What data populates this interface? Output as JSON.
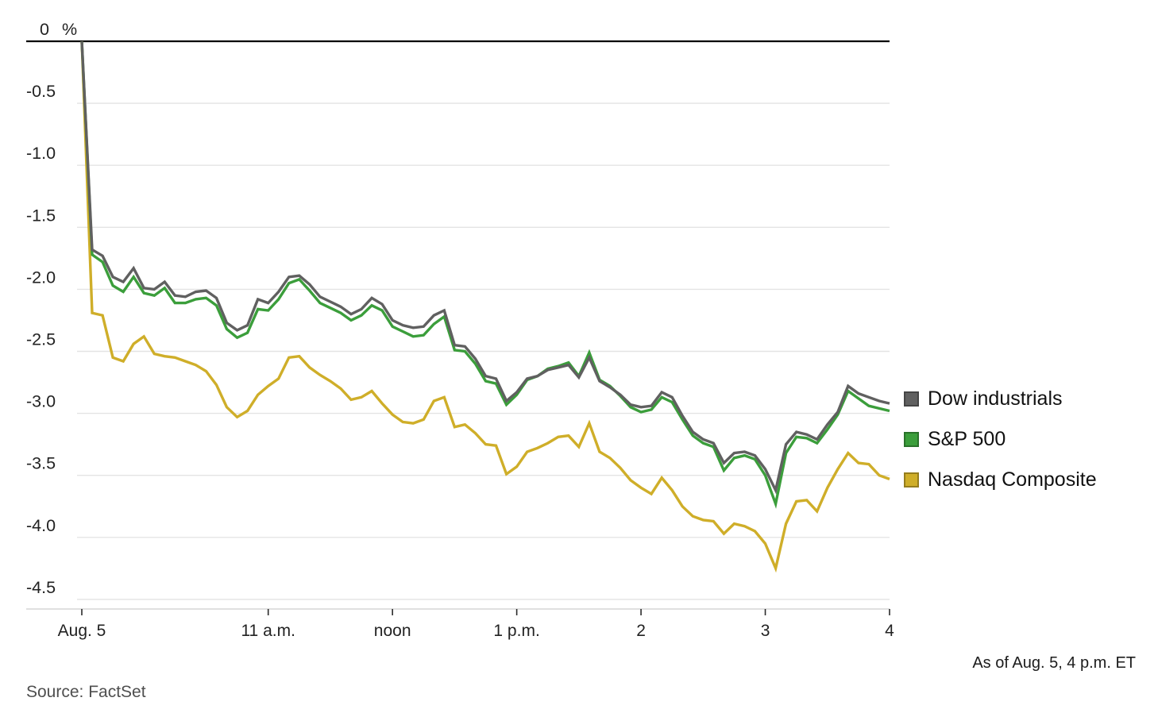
{
  "footer": {
    "source": "Source: FactSet",
    "as_of": "As of Aug. 5, 4 p.m. ET"
  },
  "chart_data": {
    "type": "line",
    "title": "",
    "xlabel": "",
    "ylabel": "%",
    "unit_label": "%",
    "ylim": [
      -4.5,
      0
    ],
    "grid": true,
    "legend_position": "right",
    "x_axis_ticks": [
      {
        "time": "9:30",
        "label": "Aug. 5"
      },
      {
        "time": "11:00",
        "label": "11 a.m."
      },
      {
        "time": "12:00",
        "label": "noon"
      },
      {
        "time": "13:00",
        "label": "1 p.m."
      },
      {
        "time": "14:00",
        "label": "2"
      },
      {
        "time": "15:00",
        "label": "3"
      },
      {
        "time": "16:00",
        "label": "4"
      }
    ],
    "y_axis_ticks": [
      {
        "value": 0,
        "label": "0"
      },
      {
        "value": -0.5,
        "label": "-0.5"
      },
      {
        "value": -1.0,
        "label": "-1.0"
      },
      {
        "value": -1.5,
        "label": "-1.5"
      },
      {
        "value": -2.0,
        "label": "-2.0"
      },
      {
        "value": -2.5,
        "label": "-2.5"
      },
      {
        "value": -3.0,
        "label": "-3.0"
      },
      {
        "value": -3.5,
        "label": "-3.5"
      },
      {
        "value": -4.0,
        "label": "-4.0"
      },
      {
        "value": -4.5,
        "label": "-4.5"
      }
    ],
    "x": [
      "9:30",
      "9:35",
      "9:40",
      "9:45",
      "9:50",
      "9:55",
      "10:00",
      "10:05",
      "10:10",
      "10:15",
      "10:20",
      "10:25",
      "10:30",
      "10:35",
      "10:40",
      "10:45",
      "10:50",
      "10:55",
      "11:00",
      "11:05",
      "11:10",
      "11:15",
      "11:20",
      "11:25",
      "11:30",
      "11:35",
      "11:40",
      "11:45",
      "11:50",
      "11:55",
      "12:00",
      "12:05",
      "12:10",
      "12:15",
      "12:20",
      "12:25",
      "12:30",
      "12:35",
      "12:40",
      "12:45",
      "12:50",
      "12:55",
      "13:00",
      "13:05",
      "13:10",
      "13:15",
      "13:20",
      "13:25",
      "13:30",
      "13:35",
      "13:40",
      "13:45",
      "13:50",
      "13:55",
      "14:00",
      "14:05",
      "14:10",
      "14:15",
      "14:20",
      "14:25",
      "14:30",
      "14:35",
      "14:40",
      "14:45",
      "14:50",
      "14:55",
      "15:00",
      "15:05",
      "15:10",
      "15:15",
      "15:20",
      "15:25",
      "15:30",
      "15:35",
      "15:40",
      "15:45",
      "15:50",
      "15:55",
      "16:00"
    ],
    "series": [
      {
        "name": "Dow industrials",
        "color": "#606060",
        "values": [
          0.0,
          -1.68,
          -1.73,
          -1.9,
          -1.94,
          -1.83,
          -1.99,
          -2.0,
          -1.94,
          -2.05,
          -2.06,
          -2.02,
          -2.01,
          -2.07,
          -2.27,
          -2.33,
          -2.29,
          -2.08,
          -2.11,
          -2.02,
          -1.9,
          -1.89,
          -1.96,
          -2.06,
          -2.1,
          -2.14,
          -2.2,
          -2.16,
          -2.07,
          -2.12,
          -2.25,
          -2.29,
          -2.31,
          -2.3,
          -2.21,
          -2.17,
          -2.45,
          -2.46,
          -2.56,
          -2.7,
          -2.72,
          -2.9,
          -2.83,
          -2.72,
          -2.7,
          -2.65,
          -2.63,
          -2.61,
          -2.71,
          -2.55,
          -2.74,
          -2.79,
          -2.85,
          -2.93,
          -2.95,
          -2.94,
          -2.83,
          -2.87,
          -3.02,
          -3.15,
          -3.21,
          -3.24,
          -3.4,
          -3.32,
          -3.31,
          -3.34,
          -3.45,
          -3.62,
          -3.25,
          -3.15,
          -3.17,
          -3.21,
          -3.09,
          -2.99,
          -2.78,
          -2.84,
          -2.87,
          -2.9,
          -2.92
        ]
      },
      {
        "name": "S&P 500",
        "color": "#3b9e3b",
        "values": [
          0.0,
          -1.72,
          -1.78,
          -1.97,
          -2.02,
          -1.9,
          -2.03,
          -2.05,
          -1.99,
          -2.11,
          -2.11,
          -2.08,
          -2.07,
          -2.13,
          -2.32,
          -2.39,
          -2.35,
          -2.16,
          -2.17,
          -2.08,
          -1.95,
          -1.92,
          -2.01,
          -2.11,
          -2.15,
          -2.19,
          -2.25,
          -2.21,
          -2.13,
          -2.17,
          -2.3,
          -2.34,
          -2.38,
          -2.37,
          -2.28,
          -2.22,
          -2.49,
          -2.5,
          -2.6,
          -2.74,
          -2.76,
          -2.93,
          -2.85,
          -2.73,
          -2.7,
          -2.64,
          -2.62,
          -2.59,
          -2.7,
          -2.51,
          -2.73,
          -2.78,
          -2.86,
          -2.95,
          -2.99,
          -2.97,
          -2.87,
          -2.91,
          -3.05,
          -3.18,
          -3.24,
          -3.27,
          -3.46,
          -3.36,
          -3.34,
          -3.37,
          -3.5,
          -3.73,
          -3.32,
          -3.19,
          -3.2,
          -3.24,
          -3.13,
          -3.01,
          -2.82,
          -2.88,
          -2.94,
          -2.96,
          -2.98
        ]
      },
      {
        "name": "Nasdaq Composite",
        "color": "#cfae29",
        "values": [
          0.0,
          -2.19,
          -2.21,
          -2.55,
          -2.58,
          -2.44,
          -2.38,
          -2.52,
          -2.54,
          -2.55,
          -2.58,
          -2.61,
          -2.66,
          -2.77,
          -2.95,
          -3.03,
          -2.98,
          -2.85,
          -2.78,
          -2.72,
          -2.55,
          -2.54,
          -2.63,
          -2.69,
          -2.74,
          -2.8,
          -2.89,
          -2.87,
          -2.82,
          -2.92,
          -3.01,
          -3.07,
          -3.08,
          -3.05,
          -2.9,
          -2.87,
          -3.11,
          -3.09,
          -3.16,
          -3.25,
          -3.26,
          -3.49,
          -3.43,
          -3.31,
          -3.28,
          -3.24,
          -3.19,
          -3.18,
          -3.27,
          -3.08,
          -3.31,
          -3.36,
          -3.44,
          -3.54,
          -3.6,
          -3.65,
          -3.52,
          -3.62,
          -3.75,
          -3.83,
          -3.86,
          -3.87,
          -3.97,
          -3.89,
          -3.91,
          -3.95,
          -4.05,
          -4.25,
          -3.89,
          -3.71,
          -3.7,
          -3.79,
          -3.6,
          -3.45,
          -3.32,
          -3.4,
          -3.41,
          -3.5,
          -3.53
        ]
      }
    ]
  }
}
